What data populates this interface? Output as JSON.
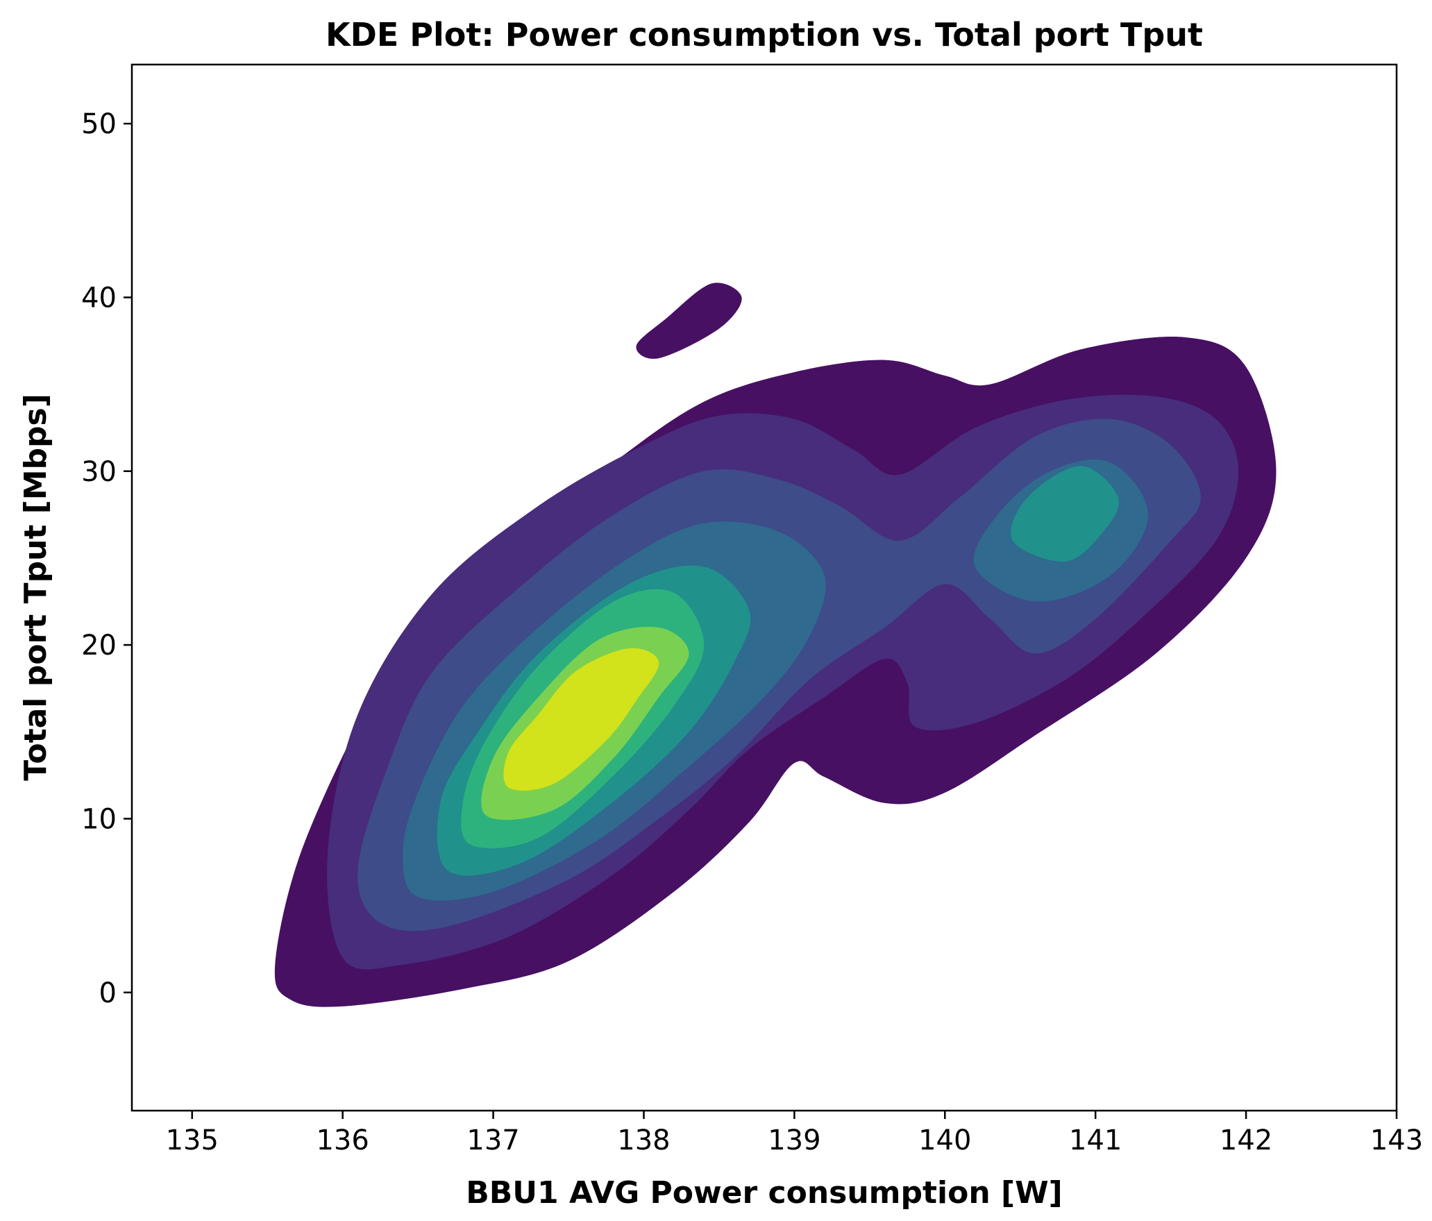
{
  "chart_data": {
    "type": "kde",
    "title": "KDE Plot: Power consumption vs. Total port Tput",
    "xlabel": "BBU1 AVG Power consumption [W]",
    "ylabel": "Total port Tput [Mbps]",
    "xlim": [
      134.6,
      143.0
    ],
    "ylim": [
      -6.8,
      53.4
    ],
    "x_ticks": [
      135,
      136,
      137,
      138,
      139,
      140,
      141,
      142,
      143
    ],
    "y_ticks": [
      0,
      10,
      20,
      30,
      40,
      50
    ],
    "grid": false,
    "legend": "none",
    "fill": true,
    "levels": [
      {
        "level": 1,
        "color": "#471063"
      },
      {
        "level": 2,
        "color": "#472d7b"
      },
      {
        "level": 3,
        "color": "#3e4c8a"
      },
      {
        "level": 4,
        "color": "#306a8e"
      },
      {
        "level": 5,
        "color": "#21918c"
      },
      {
        "level": 6,
        "color": "#2db27d"
      },
      {
        "level": 7,
        "color": "#7ad151"
      },
      {
        "level": 8,
        "color": "#d2e21b"
      }
    ],
    "density_modes": [
      {
        "x": 137.55,
        "y": 15.8,
        "peak_level": 8
      },
      {
        "x": 140.9,
        "y": 27.5,
        "peak_level": 4
      },
      {
        "x": 138.15,
        "y": 38.3,
        "peak_level": 1
      }
    ]
  }
}
